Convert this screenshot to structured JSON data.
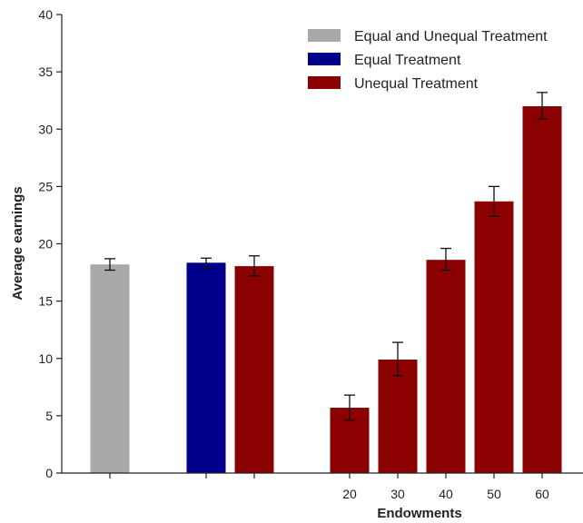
{
  "chart_data": {
    "type": "bar",
    "xlabel": "Endowments",
    "ylabel": "Average earnings",
    "ylim": [
      0,
      40
    ],
    "yticks": [
      0,
      5,
      10,
      15,
      20,
      25,
      30,
      35,
      40
    ],
    "grid": false,
    "legend_position": "top-right",
    "legend": [
      {
        "name": "Equal and Unequal Treatment",
        "color": "#a9a9a9"
      },
      {
        "name": "Equal Treatment",
        "color": "#00008b"
      },
      {
        "name": "Unequal Treatment",
        "color": "#8b0000"
      }
    ],
    "bars": [
      {
        "series": "Equal and Unequal Treatment",
        "label": "",
        "value": 18.2,
        "err_low": 17.7,
        "err_high": 18.7,
        "color": "#a9a9a9"
      },
      {
        "series": "Equal Treatment",
        "label": "",
        "value": 18.35,
        "err_low": 17.95,
        "err_high": 18.75,
        "color": "#00008b"
      },
      {
        "series": "Unequal Treatment",
        "label": "",
        "value": 18.05,
        "err_low": 17.2,
        "err_high": 18.95,
        "color": "#8b0000"
      },
      {
        "series": "Unequal Treatment",
        "label": "20",
        "value": 5.7,
        "err_low": 4.6,
        "err_high": 6.8,
        "color": "#8b0000"
      },
      {
        "series": "Unequal Treatment",
        "label": "30",
        "value": 9.9,
        "err_low": 8.5,
        "err_high": 11.4,
        "color": "#8b0000"
      },
      {
        "series": "Unequal Treatment",
        "label": "40",
        "value": 18.6,
        "err_low": 17.7,
        "err_high": 19.6,
        "color": "#8b0000"
      },
      {
        "series": "Unequal Treatment",
        "label": "50",
        "value": 23.7,
        "err_low": 22.4,
        "err_high": 25.0,
        "color": "#8b0000"
      },
      {
        "series": "Unequal Treatment",
        "label": "60",
        "value": 32.0,
        "err_low": 30.9,
        "err_high": 33.2,
        "color": "#8b0000"
      }
    ]
  }
}
